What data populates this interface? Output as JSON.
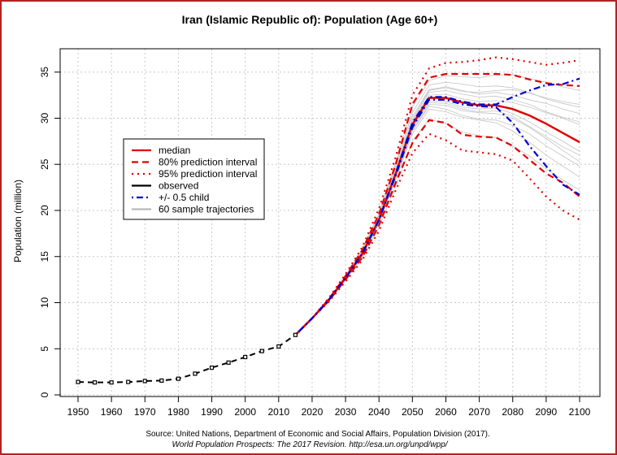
{
  "chart_data": {
    "type": "line",
    "title": "Iran (Islamic Republic of): Population (Age 60+)",
    "xlabel": "",
    "ylabel": "Population (million)",
    "xlim": [
      1947,
      2106
    ],
    "ylim": [
      0,
      37.5
    ],
    "xticks": [
      1950,
      1960,
      1970,
      1980,
      1990,
      2000,
      2010,
      2020,
      2030,
      2040,
      2050,
      2060,
      2070,
      2080,
      2090,
      2100
    ],
    "yticks": [
      0,
      5,
      10,
      15,
      20,
      25,
      30,
      35
    ],
    "grid": true,
    "legend_position": "left-middle",
    "source_line1": "Source: United Nations, Department of Economic and Social Affairs, Population Division (2017).",
    "source_line2": "World Population Prospects: The 2017 Revision. http://esa.un.org/unpd/wpp/",
    "observed": {
      "name": "observed",
      "x": [
        1950,
        1955,
        1960,
        1965,
        1970,
        1975,
        1980,
        1985,
        1990,
        1995,
        2000,
        2005,
        2010,
        2015
      ],
      "y": [
        1.4,
        1.35,
        1.35,
        1.4,
        1.5,
        1.55,
        1.75,
        2.3,
        2.95,
        3.5,
        4.1,
        4.75,
        5.25,
        6.5
      ]
    },
    "projection_x": [
      2015,
      2020,
      2025,
      2030,
      2035,
      2040,
      2045,
      2050,
      2055,
      2060,
      2065,
      2070,
      2075,
      2080,
      2085,
      2090,
      2095,
      2100
    ],
    "series": [
      {
        "name": "median",
        "color": "#e00000",
        "style": "solid",
        "values": [
          6.5,
          8.3,
          10.3,
          12.7,
          15.3,
          19.0,
          24.0,
          29.3,
          32.2,
          32.2,
          31.7,
          31.4,
          31.4,
          31.0,
          30.3,
          29.4,
          28.4,
          27.4
        ]
      },
      {
        "name": "80% prediction interval",
        "color": "#e00000",
        "style": "dashed",
        "values": [
          6.5,
          8.3,
          10.4,
          12.9,
          15.7,
          19.6,
          25.0,
          31.5,
          34.4,
          34.8,
          34.8,
          34.8,
          34.8,
          34.7,
          34.2,
          33.8,
          33.6,
          33.5
        ]
      },
      {
        "name": "80% prediction interval",
        "color": "#e00000",
        "style": "dashed",
        "values": [
          6.5,
          8.3,
          10.2,
          12.5,
          14.9,
          18.4,
          23.0,
          27.3,
          29.8,
          29.5,
          28.2,
          28.0,
          27.9,
          27.0,
          25.5,
          24.0,
          23.0,
          21.5
        ]
      },
      {
        "name": "95% prediction interval",
        "color": "#e00000",
        "style": "dotted",
        "values": [
          6.5,
          8.3,
          10.5,
          13.1,
          16.0,
          20.2,
          25.8,
          32.5,
          35.4,
          36.0,
          36.1,
          36.3,
          36.6,
          36.4,
          36.1,
          35.8,
          36.0,
          36.3
        ]
      },
      {
        "name": "95% prediction interval",
        "color": "#e00000",
        "style": "dotted",
        "values": [
          6.5,
          8.3,
          10.1,
          12.3,
          14.6,
          17.8,
          22.2,
          26.2,
          28.3,
          27.6,
          26.5,
          26.3,
          26.1,
          25.4,
          23.5,
          21.5,
          20.0,
          19.0
        ]
      },
      {
        "name": "+/- 0.5 child",
        "color": "#0000cc",
        "style": "dashdot",
        "values": [
          6.5,
          8.3,
          10.3,
          12.7,
          15.3,
          19.0,
          24.0,
          29.5,
          32.3,
          32.3,
          31.8,
          31.5,
          31.5,
          32.3,
          33.0,
          33.6,
          33.7,
          34.3
        ]
      },
      {
        "name": "+/- 0.5 child",
        "color": "#0000cc",
        "style": "dashdot",
        "values": [
          6.5,
          8.3,
          10.3,
          12.7,
          15.3,
          19.0,
          23.8,
          29.0,
          32.0,
          32.0,
          31.5,
          31.3,
          31.2,
          29.5,
          27.0,
          24.8,
          22.8,
          21.7
        ]
      }
    ],
    "trajectories_name": "60 sample trajectories",
    "trajectories": [
      [
        6.5,
        8.3,
        10.4,
        12.8,
        15.5,
        19.3,
        24.6,
        30.2,
        33.1,
        33.4,
        33.0,
        32.6,
        32.8,
        32.5,
        32.0,
        31.6,
        31.0,
        30.5
      ],
      [
        6.5,
        8.3,
        10.2,
        12.6,
        15.1,
        18.7,
        23.5,
        28.7,
        31.5,
        31.4,
        30.8,
        30.6,
        30.5,
        30.0,
        29.0,
        27.8,
        26.5,
        25.3
      ],
      [
        6.5,
        8.3,
        10.3,
        12.8,
        15.4,
        19.1,
        24.2,
        29.7,
        32.8,
        33.0,
        32.6,
        32.3,
        32.4,
        32.0,
        31.5,
        30.7,
        30.1,
        29.6
      ],
      [
        6.5,
        8.3,
        10.2,
        12.5,
        15.0,
        18.6,
        23.3,
        28.3,
        31.0,
        30.7,
        30.1,
        29.8,
        29.5,
        28.6,
        27.4,
        26.0,
        24.8,
        23.6
      ],
      [
        6.5,
        8.3,
        10.4,
        13.0,
        15.8,
        19.7,
        25.2,
        31.2,
        34.1,
        34.6,
        34.5,
        34.4,
        34.7,
        34.7,
        34.3,
        33.9,
        33.4,
        33.0
      ],
      [
        6.5,
        8.3,
        10.3,
        12.7,
        15.3,
        18.9,
        23.9,
        29.1,
        31.9,
        31.8,
        31.2,
        31.0,
        31.1,
        30.5,
        29.6,
        28.5,
        27.5,
        26.4
      ],
      [
        6.5,
        8.3,
        10.1,
        12.4,
        14.8,
        18.2,
        22.7,
        27.5,
        29.9,
        29.4,
        28.5,
        28.1,
        27.9,
        27.0,
        25.9,
        24.5,
        23.3,
        22.2
      ],
      [
        6.5,
        8.3,
        10.3,
        12.8,
        15.5,
        19.2,
        24.3,
        29.9,
        33.0,
        33.3,
        32.9,
        32.8,
        33.0,
        33.1,
        32.7,
        32.2,
        31.8,
        31.5
      ],
      [
        6.5,
        8.3,
        10.3,
        12.6,
        15.2,
        18.8,
        23.8,
        29.0,
        31.7,
        31.6,
        31.0,
        30.7,
        30.8,
        30.2,
        29.1,
        28.0,
        26.9,
        26.0
      ],
      [
        6.5,
        8.3,
        10.4,
        12.9,
        15.6,
        19.5,
        24.9,
        30.6,
        33.6,
        33.9,
        33.7,
        33.4,
        33.5,
        33.3,
        32.8,
        32.1,
        31.6,
        31.2
      ],
      [
        6.5,
        8.3,
        10.2,
        12.6,
        15.1,
        18.6,
        23.5,
        28.6,
        31.3,
        31.0,
        30.3,
        29.9,
        29.8,
        29.2,
        28.3,
        27.0,
        25.9,
        24.8
      ],
      [
        6.5,
        8.3,
        10.3,
        12.7,
        15.3,
        19.0,
        24.1,
        29.5,
        32.5,
        32.6,
        32.1,
        31.8,
        31.9,
        31.7,
        31.2,
        30.6,
        30.0,
        29.3
      ]
    ],
    "legend": [
      {
        "label": "median",
        "color": "#e00000",
        "style": "solid"
      },
      {
        "label": "80% prediction interval",
        "color": "#e00000",
        "style": "dashed"
      },
      {
        "label": "95% prediction interval",
        "color": "#e00000",
        "style": "dotted"
      },
      {
        "label": "observed",
        "color": "#000000",
        "style": "solid"
      },
      {
        "label": "+/- 0.5 child",
        "color": "#0000cc",
        "style": "dashdot"
      },
      {
        "label": "60 sample trajectories",
        "color": "#bbbbbb",
        "style": "solid"
      }
    ]
  }
}
